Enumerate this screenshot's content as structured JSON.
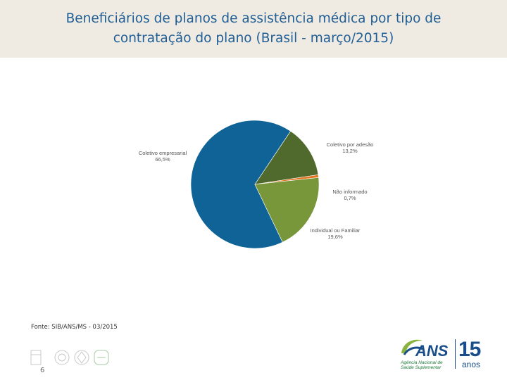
{
  "title": "Beneficiários de planos de assistência médica por tipo de contratação do plano (Brasil - março/2015)",
  "source": "Fonte: SIB/ANS/MS - 03/2015",
  "page_number": "6",
  "logo": {
    "brand": "ANS",
    "subtitle": "Agência Nacional de Saúde Suplementar",
    "years_number": "15",
    "years_word": "anos"
  },
  "colors": {
    "header_bg": "#efebe2",
    "title": "#1f5e96",
    "coletivo_empresarial": "#0f6396",
    "coletivo_adesao": "#4f6a2c",
    "nao_informado": "#e2751f",
    "individual": "#77973a"
  },
  "chart_data": {
    "type": "pie",
    "title": "Beneficiários de planos de assistência médica por tipo de contratação do plano (Brasil - março/2015)",
    "slices": [
      {
        "label": "Coletivo empresarial",
        "value": 66.5,
        "value_label": "66,5%",
        "color": "#0f6396"
      },
      {
        "label": "Coletivo por adesão",
        "value": 13.2,
        "value_label": "13,2%",
        "color": "#4f6a2c"
      },
      {
        "label": "Não informado",
        "value": 0.7,
        "value_label": "0,7%",
        "color": "#e2751f"
      },
      {
        "label": "Individual ou Familiar",
        "value": 19.6,
        "value_label": "19,6%",
        "color": "#77973a"
      }
    ],
    "legend": "none"
  }
}
